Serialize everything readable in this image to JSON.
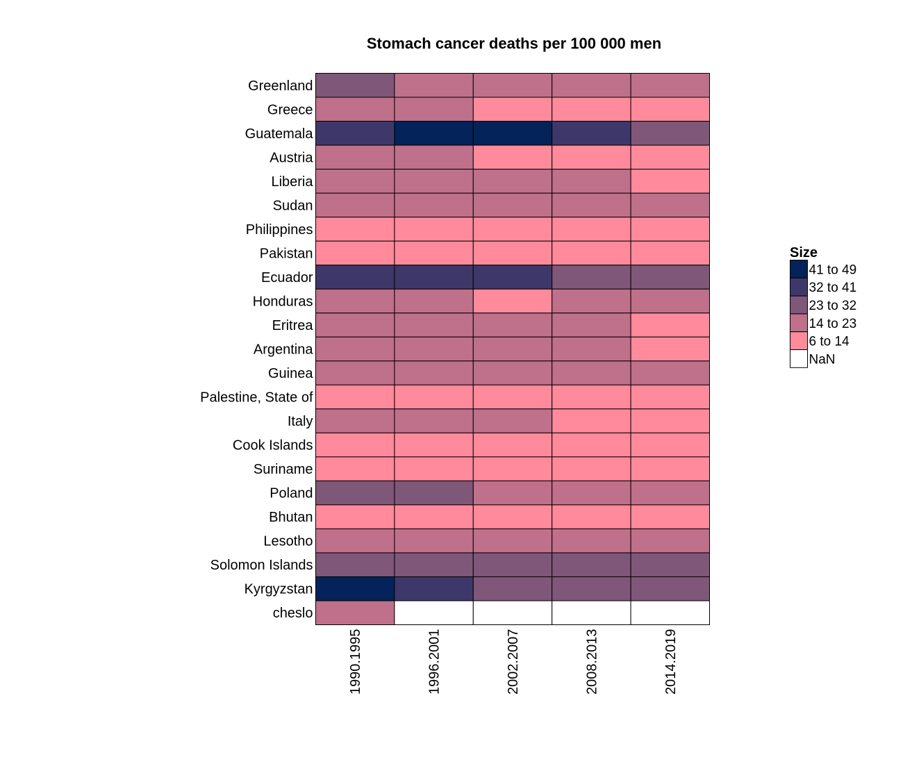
{
  "chart_data": {
    "type": "heatmap",
    "title": "Stomach cancer deaths per 100 000 men",
    "xlabel": "",
    "ylabel": "",
    "columns": [
      "1990.1995",
      "1996.2001",
      "2002.2007",
      "2008.2013",
      "2014.2019"
    ],
    "rows": [
      "Greenland",
      "Greece",
      "Guatemala",
      "Austria",
      "Liberia",
      "Sudan",
      "Philippines",
      "Pakistan",
      "Ecuador",
      "Honduras",
      "Eritrea",
      "Argentina",
      "Guinea",
      "Palestine, State of",
      "Italy",
      "Cook Islands",
      "Suriname",
      "Poland",
      "Bhutan",
      "Lesotho",
      "Solomon Islands",
      "Kyrgyzstan",
      "cheslo"
    ],
    "cells": [
      [
        "23 to 32",
        "14 to 23",
        "14 to 23",
        "14 to 23",
        "14 to 23"
      ],
      [
        "14 to 23",
        "14 to 23",
        "6 to 14",
        "6 to 14",
        "6 to 14"
      ],
      [
        "32 to 41",
        "41 to 49",
        "41 to 49",
        "32 to 41",
        "23 to 32"
      ],
      [
        "14 to 23",
        "14 to 23",
        "6 to 14",
        "6 to 14",
        "6 to 14"
      ],
      [
        "14 to 23",
        "14 to 23",
        "14 to 23",
        "14 to 23",
        "6 to 14"
      ],
      [
        "14 to 23",
        "14 to 23",
        "14 to 23",
        "14 to 23",
        "14 to 23"
      ],
      [
        "6 to 14",
        "6 to 14",
        "6 to 14",
        "6 to 14",
        "6 to 14"
      ],
      [
        "6 to 14",
        "6 to 14",
        "6 to 14",
        "6 to 14",
        "6 to 14"
      ],
      [
        "32 to 41",
        "32 to 41",
        "32 to 41",
        "23 to 32",
        "23 to 32"
      ],
      [
        "14 to 23",
        "14 to 23",
        "6 to 14",
        "14 to 23",
        "14 to 23"
      ],
      [
        "14 to 23",
        "14 to 23",
        "14 to 23",
        "14 to 23",
        "6 to 14"
      ],
      [
        "14 to 23",
        "14 to 23",
        "14 to 23",
        "14 to 23",
        "6 to 14"
      ],
      [
        "14 to 23",
        "14 to 23",
        "14 to 23",
        "14 to 23",
        "14 to 23"
      ],
      [
        "6 to 14",
        "6 to 14",
        "6 to 14",
        "6 to 14",
        "6 to 14"
      ],
      [
        "14 to 23",
        "14 to 23",
        "14 to 23",
        "6 to 14",
        "6 to 14"
      ],
      [
        "6 to 14",
        "6 to 14",
        "6 to 14",
        "6 to 14",
        "6 to 14"
      ],
      [
        "6 to 14",
        "6 to 14",
        "6 to 14",
        "6 to 14",
        "6 to 14"
      ],
      [
        "23 to 32",
        "23 to 32",
        "14 to 23",
        "14 to 23",
        "14 to 23"
      ],
      [
        "6 to 14",
        "6 to 14",
        "6 to 14",
        "6 to 14",
        "6 to 14"
      ],
      [
        "14 to 23",
        "14 to 23",
        "14 to 23",
        "14 to 23",
        "14 to 23"
      ],
      [
        "23 to 32",
        "23 to 32",
        "23 to 32",
        "23 to 32",
        "23 to 32"
      ],
      [
        "41 to 49",
        "32 to 41",
        "23 to 32",
        "23 to 32",
        "23 to 32"
      ],
      [
        "14 to 23",
        "NaN",
        "NaN",
        "NaN",
        "NaN"
      ]
    ],
    "legend": {
      "title": "Size",
      "placement": "right",
      "entries": [
        {
          "label": "41 to 49",
          "color": "#03235a"
        },
        {
          "label": "32 to 41",
          "color": "#3e386a"
        },
        {
          "label": "23 to 32",
          "color": "#7f5779"
        },
        {
          "label": "14 to 23",
          "color": "#bf708a"
        },
        {
          "label": "6 to 14",
          "color": "#ff8a9b"
        },
        {
          "label": "NaN",
          "color": "#ffffff"
        }
      ]
    },
    "grid": true
  }
}
